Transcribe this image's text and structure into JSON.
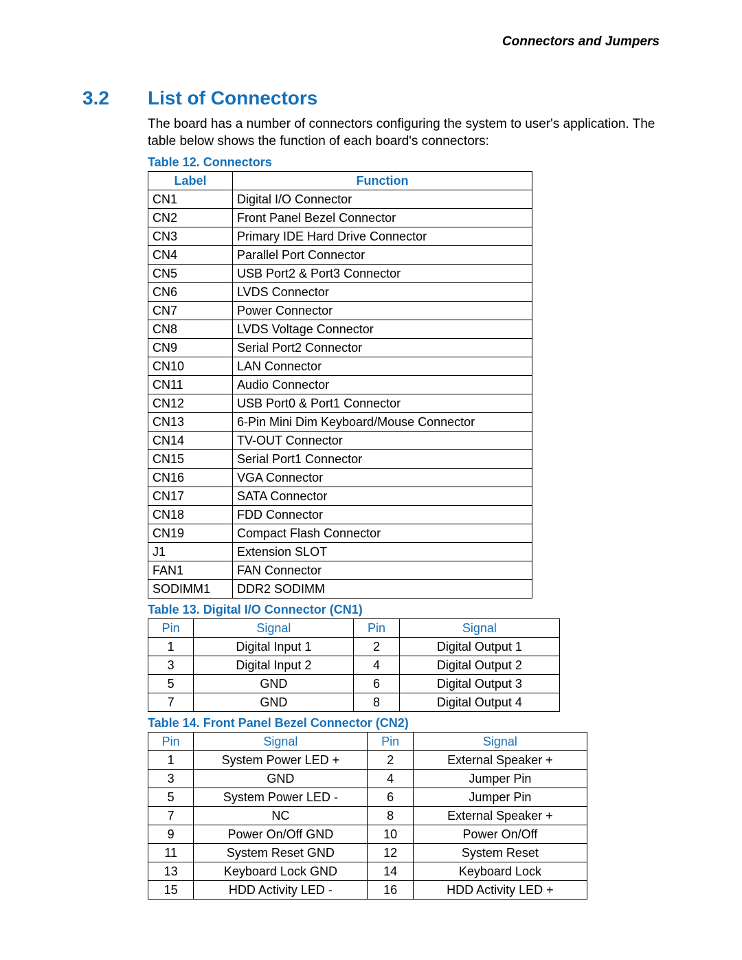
{
  "header": {
    "right": "Connectors and Jumpers"
  },
  "section": {
    "number": "3.2",
    "title": "List of Connectors"
  },
  "intro": "The board has a number of connectors configuring the system to user's application. The table below shows the function of each board's connectors:",
  "colors": {
    "accent": "#1670b8",
    "border": "#000000",
    "text": "#000000",
    "bg": "#ffffff"
  },
  "table12": {
    "caption": "Table 12. Connectors",
    "columns": [
      "Label",
      "Function"
    ],
    "rows": [
      [
        "CN1",
        "Digital I/O Connector"
      ],
      [
        "CN2",
        "Front Panel Bezel Connector"
      ],
      [
        "CN3",
        "Primary IDE Hard Drive Connector"
      ],
      [
        "CN4",
        "Parallel Port Connector"
      ],
      [
        "CN5",
        "USB Port2 & Port3 Connector"
      ],
      [
        "CN6",
        "LVDS Connector"
      ],
      [
        "CN7",
        "Power Connector"
      ],
      [
        "CN8",
        "LVDS Voltage Connector"
      ],
      [
        "CN9",
        "Serial Port2 Connector"
      ],
      [
        "CN10",
        "LAN Connector"
      ],
      [
        "CN11",
        "Audio Connector"
      ],
      [
        "CN12",
        "USB Port0 & Port1 Connector"
      ],
      [
        "CN13",
        "6-Pin Mini Dim Keyboard/Mouse Connector"
      ],
      [
        "CN14",
        "TV-OUT Connector"
      ],
      [
        "CN15",
        "Serial Port1 Connector"
      ],
      [
        "CN16",
        "VGA Connector"
      ],
      [
        "CN17",
        "SATA Connector"
      ],
      [
        "CN18",
        "FDD Connector"
      ],
      [
        "CN19",
        "Compact Flash Connector"
      ],
      [
        "J1",
        "Extension SLOT"
      ],
      [
        "FAN1",
        "FAN Connector"
      ],
      [
        "SODIMM1",
        "DDR2 SODIMM"
      ]
    ]
  },
  "table13": {
    "caption": "Table 13. Digital I/O Connector (CN1)",
    "columns": [
      "Pin",
      "Signal",
      "Pin",
      "Signal"
    ],
    "rows": [
      [
        "1",
        "Digital Input 1",
        "2",
        "Digital Output 1"
      ],
      [
        "3",
        "Digital Input 2",
        "4",
        "Digital Output 2"
      ],
      [
        "5",
        "GND",
        "6",
        "Digital Output 3"
      ],
      [
        "7",
        "GND",
        "8",
        "Digital Output 4"
      ]
    ]
  },
  "table14": {
    "caption": "Table 14. Front Panel Bezel Connector (CN2)",
    "columns": [
      "Pin",
      "Signal",
      "Pin",
      "Signal"
    ],
    "rows": [
      [
        "1",
        "System Power LED +",
        "2",
        "External Speaker +"
      ],
      [
        "3",
        "GND",
        "4",
        "Jumper Pin"
      ],
      [
        "5",
        "System Power LED -",
        "6",
        "Jumper Pin"
      ],
      [
        "7",
        "NC",
        "8",
        "External Speaker +"
      ],
      [
        "9",
        "Power On/Off GND",
        "10",
        "Power On/Off"
      ],
      [
        "11",
        "System Reset GND",
        "12",
        "System Reset"
      ],
      [
        "13",
        "Keyboard Lock GND",
        "14",
        "Keyboard Lock"
      ],
      [
        "15",
        "HDD Activity LED -",
        "16",
        "HDD Activity LED +"
      ]
    ]
  }
}
